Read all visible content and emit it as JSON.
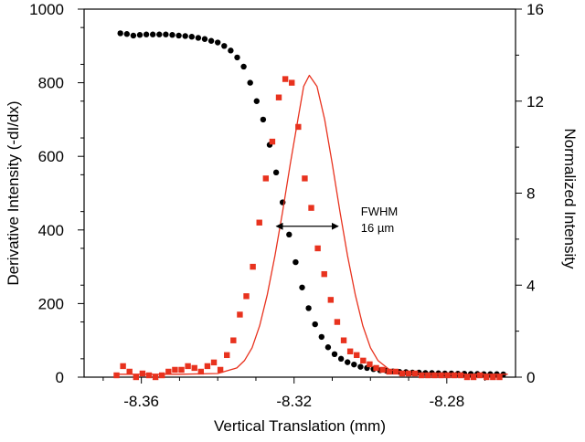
{
  "chart_data": {
    "type": "scatter",
    "xlabel": "Vertical Translation (mm)",
    "ylabel_left": "Derivative Intensity (-dI/dx)",
    "ylabel_right": "Normalized Intensity",
    "xlim": [
      -8.375,
      -8.262
    ],
    "ylim_left": [
      0,
      1000
    ],
    "ylim_right": [
      0,
      16
    ],
    "x_ticks": [
      -8.36,
      -8.32,
      -8.28
    ],
    "x_tick_labels": [
      "-8.36",
      "-8.32",
      "-8.28"
    ],
    "y_left_ticks": [
      0,
      200,
      400,
      600,
      800,
      1000
    ],
    "y_left_tick_labels": [
      "0",
      "200",
      "400",
      "600",
      "800",
      "1000"
    ],
    "y_right_ticks": [
      0,
      4,
      8,
      12,
      16
    ],
    "y_right_tick_labels": [
      "0",
      "4",
      "8",
      "12",
      "16"
    ],
    "grid": false,
    "colors": {
      "derivative": "#e8321e",
      "intensity": "#000000",
      "fit": "#e8321e"
    },
    "series": [
      {
        "marker": "circle",
        "axis": "right",
        "x": [
          -8.3655,
          -8.3638,
          -8.3621,
          -8.3604,
          -8.3587,
          -8.357,
          -8.3553,
          -8.3536,
          -8.3519,
          -8.3502,
          -8.3485,
          -8.3468,
          -8.3451,
          -8.3434,
          -8.3417,
          -8.34,
          -8.3383,
          -8.3366,
          -8.3349,
          -8.3332,
          -8.3315,
          -8.3298,
          -8.3281,
          -8.3264,
          -8.3247,
          -8.323,
          -8.3213,
          -8.3196,
          -8.3179,
          -8.3162,
          -8.3145,
          -8.3128,
          -8.3111,
          -8.3094,
          -8.3077,
          -8.306,
          -8.3043,
          -8.3026,
          -8.3009,
          -8.2992,
          -8.2975,
          -8.2958,
          -8.2941,
          -8.2924,
          -8.2907,
          -8.289,
          -8.2873,
          -8.2856,
          -8.2839,
          -8.2822,
          -8.2805,
          -8.2788,
          -8.2771,
          -8.2754,
          -8.2737,
          -8.272,
          -8.2703,
          -8.2686,
          -8.2669,
          -8.2652
        ],
        "values": [
          14.95,
          14.92,
          14.85,
          14.88,
          14.9,
          14.9,
          14.9,
          14.9,
          14.88,
          14.85,
          14.83,
          14.8,
          14.75,
          14.7,
          14.62,
          14.55,
          14.4,
          14.2,
          13.9,
          13.5,
          12.8,
          12.0,
          11.2,
          10.1,
          8.9,
          7.6,
          6.2,
          5.0,
          3.9,
          3.0,
          2.3,
          1.75,
          1.3,
          1.0,
          0.8,
          0.65,
          0.55,
          0.45,
          0.4,
          0.35,
          0.3,
          0.28,
          0.25,
          0.23,
          0.22,
          0.2,
          0.2,
          0.18,
          0.18,
          0.17,
          0.16,
          0.16,
          0.15,
          0.15,
          0.14,
          0.14,
          0.13,
          0.13,
          0.13,
          0.12
        ]
      },
      {
        "marker": "square",
        "axis": "left",
        "x": [
          -8.3665,
          -8.3648,
          -8.3631,
          -8.3614,
          -8.3597,
          -8.358,
          -8.3563,
          -8.3546,
          -8.3529,
          -8.3512,
          -8.3495,
          -8.3478,
          -8.3461,
          -8.3444,
          -8.3427,
          -8.341,
          -8.3393,
          -8.3376,
          -8.3359,
          -8.3342,
          -8.3325,
          -8.3308,
          -8.3291,
          -8.3274,
          -8.3257,
          -8.324,
          -8.3223,
          -8.3206,
          -8.3189,
          -8.3172,
          -8.3155,
          -8.3138,
          -8.3121,
          -8.3104,
          -8.3087,
          -8.307,
          -8.3053,
          -8.3036,
          -8.3019,
          -8.3002,
          -8.2985,
          -8.2968,
          -8.2951,
          -8.2934,
          -8.2917,
          -8.29,
          -8.2883,
          -8.2866,
          -8.2849,
          -8.2832,
          -8.2815,
          -8.2798,
          -8.2781,
          -8.2764,
          -8.2747,
          -8.273,
          -8.2713,
          -8.2696,
          -8.2679,
          -8.2662
        ],
        "values": [
          5,
          30,
          15,
          0,
          10,
          5,
          0,
          5,
          15,
          20,
          20,
          30,
          25,
          15,
          30,
          40,
          20,
          60,
          100,
          170,
          220,
          300,
          420,
          540,
          640,
          760,
          810,
          800,
          680,
          540,
          460,
          350,
          280,
          210,
          150,
          100,
          70,
          60,
          45,
          35,
          25,
          20,
          15,
          15,
          10,
          10,
          10,
          5,
          5,
          5,
          5,
          5,
          5,
          5,
          0,
          0,
          5,
          0,
          0,
          0
        ]
      },
      {
        "marker": "line",
        "axis": "left",
        "x": [
          -8.366,
          -8.36,
          -8.35,
          -8.34,
          -8.335,
          -8.333,
          -8.331,
          -8.329,
          -8.327,
          -8.325,
          -8.323,
          -8.321,
          -8.319,
          -8.3175,
          -8.316,
          -8.314,
          -8.312,
          -8.31,
          -8.308,
          -8.306,
          -8.304,
          -8.302,
          -8.3,
          -8.298,
          -8.295,
          -8.29,
          -8.28,
          -8.27,
          -8.264
        ],
        "values": [
          8,
          8,
          8,
          10,
          25,
          45,
          80,
          140,
          225,
          330,
          450,
          580,
          700,
          790,
          820,
          790,
          700,
          580,
          450,
          330,
          225,
          140,
          80,
          45,
          20,
          10,
          8,
          8,
          8
        ]
      }
    ],
    "annotations": [
      {
        "text_line1": "FWHM",
        "text_line2": "16 µm",
        "arrow_from_x": -8.3246,
        "arrow_to_x": -8.3085,
        "arrow_y": 410
      }
    ]
  }
}
